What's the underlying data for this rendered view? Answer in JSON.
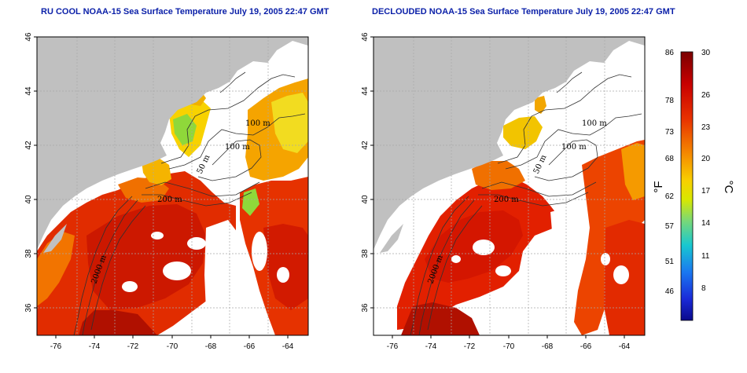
{
  "titles": {
    "left": "RU COOL NOAA-15 Sea Surface Temperature July 19, 2005 22:47 GMT",
    "right": "DECLOUDED NOAA-15 Sea Surface Temperature July 19, 2005 22:47 GMT"
  },
  "map_axes": {
    "longitude_ticks": [
      "-76",
      "-74",
      "-72",
      "-70",
      "-68",
      "-66",
      "-64"
    ],
    "latitude_ticks": [
      "46",
      "44",
      "42",
      "40",
      "38",
      "36"
    ]
  },
  "contour_labels": [
    "100 m",
    "100 m",
    "50 m",
    "200 m",
    "2000 m"
  ],
  "colorbar": {
    "fahrenheit_ticks": [
      "86",
      "78",
      "73",
      "68",
      "62",
      "57",
      "51",
      "46"
    ],
    "celsius_ticks": [
      "30",
      "26",
      "23",
      "20",
      "17",
      "14",
      "11",
      "8"
    ],
    "fahrenheit_unit": "°F",
    "celsius_unit": "°C",
    "colors": [
      "#7a0000",
      "#c00000",
      "#e52a00",
      "#f57a00",
      "#fbb400",
      "#f3e800",
      "#8ee06a",
      "#1ec8c8",
      "#1a7cf0",
      "#1a2cd8",
      "#0a0a8c"
    ]
  },
  "colors": {
    "land": "#c0c0c0",
    "title": "#0a1fa8",
    "grid": "#a8a8a8"
  }
}
